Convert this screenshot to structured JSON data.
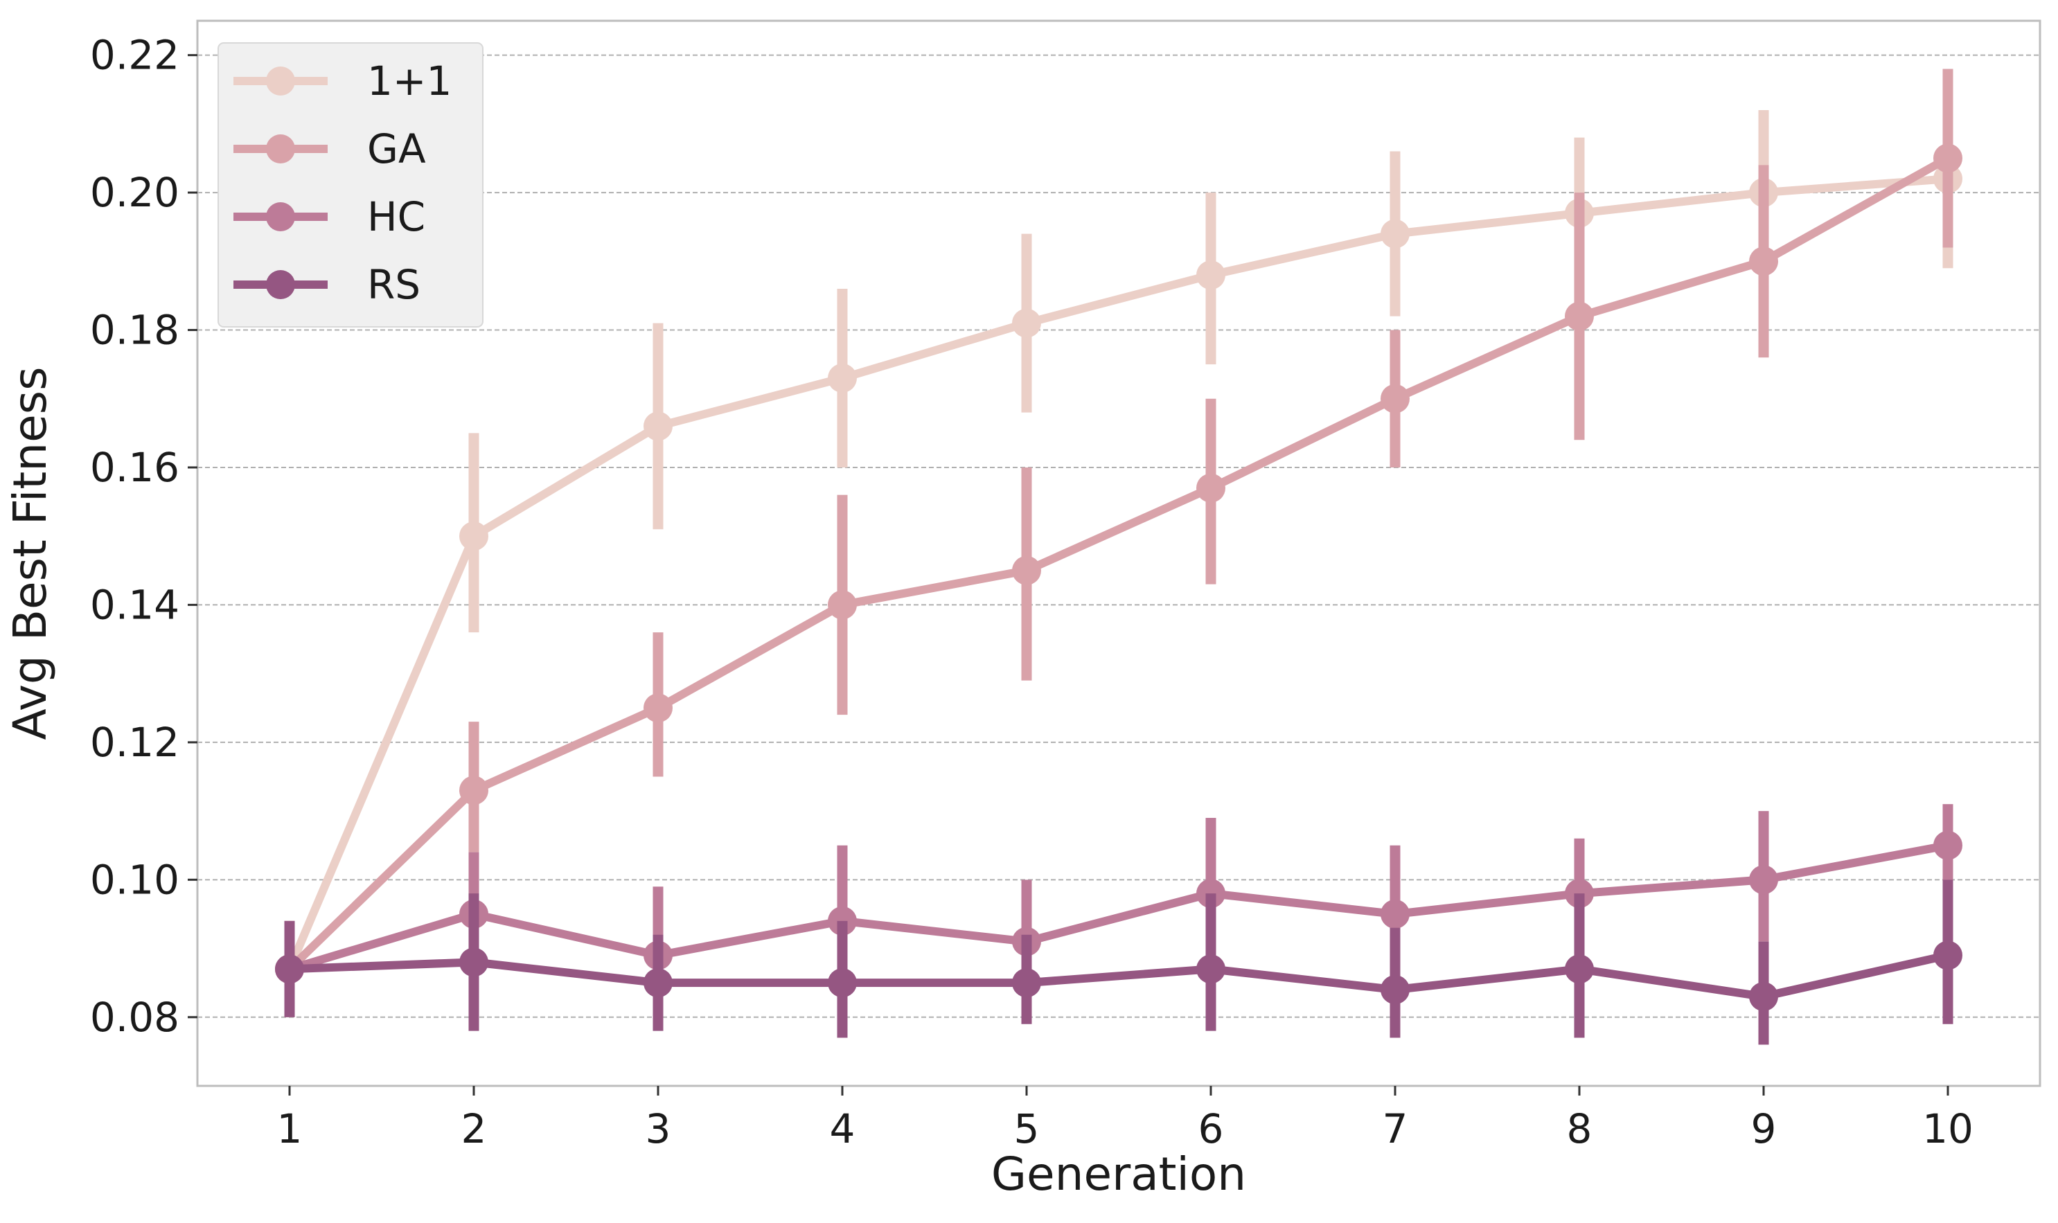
{
  "chart_data": {
    "type": "line",
    "title": "",
    "xlabel": "Generation",
    "ylabel": "Avg Best Fitness",
    "x": [
      1,
      2,
      3,
      4,
      5,
      6,
      7,
      8,
      9,
      10
    ],
    "xlim": [
      0.5,
      10.5
    ],
    "ylim": [
      0.07,
      0.225
    ],
    "yticks": [
      0.08,
      0.1,
      0.12,
      0.14,
      0.16,
      0.18,
      0.2,
      0.22
    ],
    "ytick_labels": [
      "0.08",
      "0.10",
      "0.12",
      "0.14",
      "0.16",
      "0.18",
      "0.20",
      "0.22"
    ],
    "xtick_labels": [
      "1",
      "2",
      "3",
      "4",
      "5",
      "6",
      "7",
      "8",
      "9",
      "10"
    ],
    "grid": "horizontal dashed",
    "legend_position": "top-left",
    "series": [
      {
        "name": "1+1",
        "color": "#ebcfc7",
        "values": [
          0.087,
          0.15,
          0.166,
          0.173,
          0.181,
          0.188,
          0.194,
          0.197,
          0.2,
          0.202
        ],
        "err_low": [
          0.08,
          0.136,
          0.151,
          0.16,
          0.168,
          0.175,
          0.182,
          0.185,
          0.188,
          0.189
        ],
        "err_high": [
          0.094,
          0.165,
          0.181,
          0.186,
          0.194,
          0.2,
          0.206,
          0.208,
          0.212,
          0.215
        ]
      },
      {
        "name": "GA",
        "color": "#d9a2a9",
        "values": [
          0.087,
          0.113,
          0.125,
          0.14,
          0.145,
          0.157,
          0.17,
          0.182,
          0.19,
          0.205
        ],
        "err_low": [
          0.08,
          0.104,
          0.115,
          0.124,
          0.129,
          0.143,
          0.16,
          0.164,
          0.176,
          0.192
        ],
        "err_high": [
          0.094,
          0.123,
          0.136,
          0.156,
          0.16,
          0.17,
          0.18,
          0.2,
          0.204,
          0.218
        ]
      },
      {
        "name": "HC",
        "color": "#bd7b98",
        "values": [
          0.087,
          0.095,
          0.089,
          0.094,
          0.091,
          0.098,
          0.095,
          0.098,
          0.1,
          0.105
        ],
        "err_low": [
          0.08,
          0.086,
          0.08,
          0.083,
          0.082,
          0.088,
          0.087,
          0.091,
          0.091,
          0.098
        ],
        "err_high": [
          0.094,
          0.104,
          0.099,
          0.105,
          0.1,
          0.109,
          0.105,
          0.106,
          0.11,
          0.111
        ]
      },
      {
        "name": "RS",
        "color": "#955682",
        "values": [
          0.087,
          0.088,
          0.085,
          0.085,
          0.085,
          0.087,
          0.084,
          0.087,
          0.083,
          0.089
        ],
        "err_low": [
          0.08,
          0.078,
          0.078,
          0.077,
          0.079,
          0.078,
          0.077,
          0.077,
          0.076,
          0.079
        ],
        "err_high": [
          0.094,
          0.098,
          0.092,
          0.094,
          0.092,
          0.098,
          0.093,
          0.098,
          0.091,
          0.1
        ]
      }
    ]
  }
}
